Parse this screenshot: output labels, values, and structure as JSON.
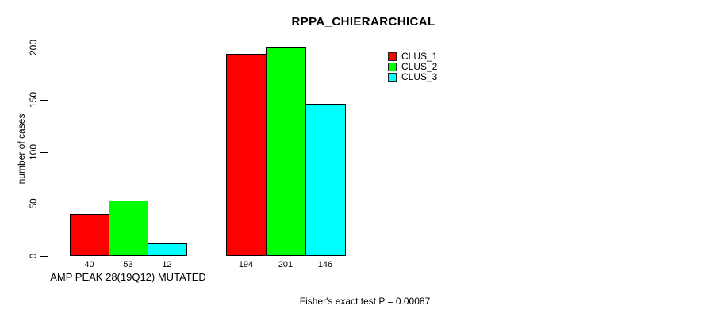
{
  "chart_data": {
    "type": "bar",
    "title": "RPPA_CHIERARCHICAL",
    "ylabel": "number of cases",
    "xlabel": "",
    "yticks": [
      0,
      50,
      100,
      150,
      200
    ],
    "ylim": [
      0,
      201
    ],
    "grid": false,
    "categories": [
      "AMP PEAK 28(19Q12) MUTATED",
      ""
    ],
    "series": [
      {
        "name": "CLUS_1",
        "color": "#ff0000",
        "values": [
          40,
          194
        ]
      },
      {
        "name": "CLUS_2",
        "color": "#00ff00",
        "values": [
          53,
          201
        ]
      },
      {
        "name": "CLUS_3",
        "color": "#00ffff",
        "values": [
          12,
          146
        ]
      }
    ],
    "bar_value_labels_shown": true,
    "bar_border_color": "#000000",
    "legend": {
      "position": "top-right",
      "entries": [
        "CLUS_1",
        "CLUS_2",
        "CLUS_3"
      ]
    },
    "footer": "Fisher's exact test P = 0.00087"
  }
}
